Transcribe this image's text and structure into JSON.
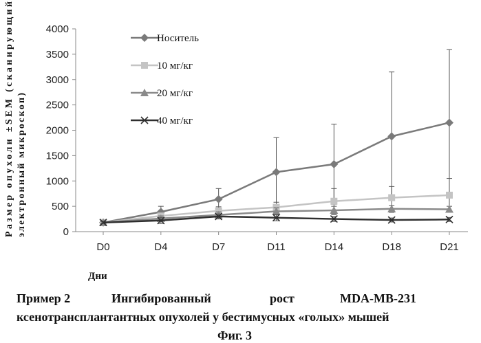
{
  "chart_data": {
    "type": "line",
    "categories": [
      "D0",
      "D4",
      "D7",
      "D11",
      "D14",
      "D18",
      "D21"
    ],
    "series": [
      {
        "name": "Носитель",
        "values": [
          180,
          390,
          640,
          1175,
          1330,
          1880,
          2150
        ],
        "errors": [
          20,
          110,
          210,
          680,
          790,
          1270,
          1440
        ],
        "color": "#7a7a7a",
        "marker": "diamond"
      },
      {
        "name": "10 мг/кг",
        "values": [
          180,
          310,
          410,
          480,
          600,
          670,
          720
        ],
        "errors": [
          20,
          60,
          80,
          100,
          250,
          220,
          330
        ],
        "color": "#c4c4c4",
        "marker": "square"
      },
      {
        "name": "20 мг/кг",
        "values": [
          180,
          260,
          330,
          400,
          420,
          450,
          440
        ],
        "errors": [
          20,
          50,
          60,
          70,
          80,
          70,
          60
        ],
        "color": "#8a8a8a",
        "marker": "triangle"
      },
      {
        "name": "40 мг/кг",
        "values": [
          180,
          220,
          300,
          275,
          250,
          230,
          240
        ],
        "errors": [
          20,
          60,
          50,
          60,
          50,
          40,
          40
        ],
        "color": "#2f2f2f",
        "marker": "x"
      }
    ],
    "ylim": [
      0,
      4000
    ],
    "yticks": [
      0,
      500,
      1000,
      1500,
      2000,
      2500,
      3000,
      3500,
      4000
    ],
    "ylabel_line1": "Размер опухоли ±SEM (сканирующий",
    "ylabel_line2": "электронный микроскоп)",
    "xlabel": "Дни",
    "grid": false,
    "legend_position": "top-left"
  },
  "caption": {
    "line1_parts": [
      "Пример 2",
      "Ингибированный",
      "рост",
      "MDA-MB-231"
    ],
    "line2": "ксенотрансплантантных опухолей у бестимусных «голых» мышей",
    "line3": "Фиг. 3"
  }
}
